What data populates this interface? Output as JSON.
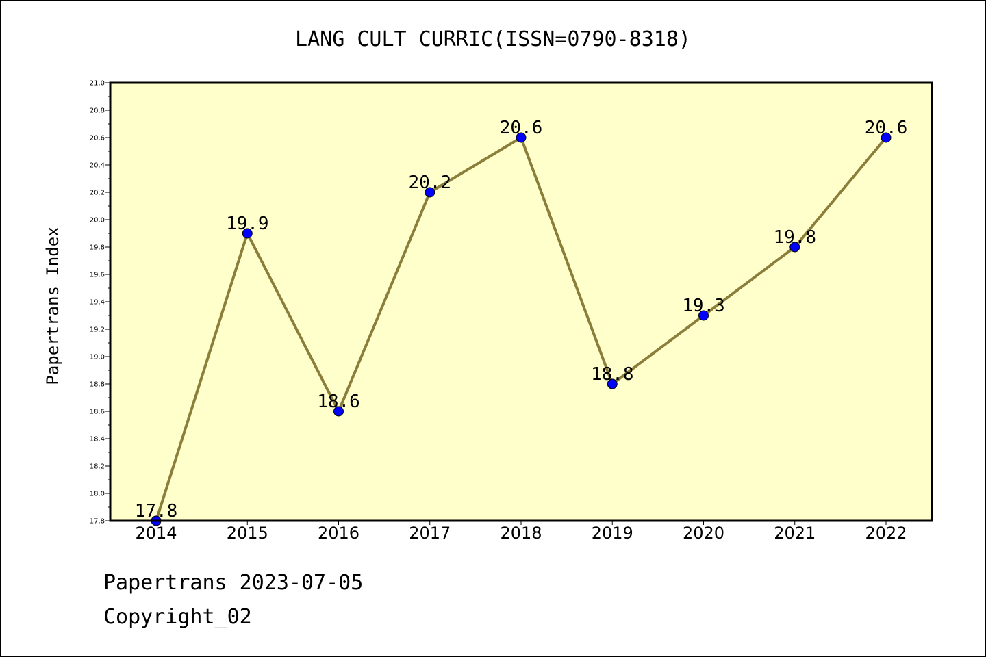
{
  "chart_data": {
    "type": "line",
    "title": "LANG CULT CURRIC(ISSN=0790-8318)",
    "xlabel": "",
    "ylabel": "Papertrans Index",
    "x": [
      "2014",
      "2015",
      "2016",
      "2017",
      "2018",
      "2019",
      "2020",
      "2021",
      "2022"
    ],
    "series": [
      {
        "values": [
          17.8,
          19.9,
          18.6,
          20.2,
          20.6,
          18.8,
          19.3,
          19.8,
          20.6
        ],
        "labels": [
          "17.8",
          "19.9",
          "18.6",
          "20.2",
          "20.6",
          "18.8",
          "19.3",
          "19.8",
          "20.6"
        ]
      }
    ],
    "ylim": [
      17.8,
      21.0
    ],
    "yticks": [
      "17.8",
      "18.0",
      "18.2",
      "18.4",
      "18.6",
      "18.8",
      "19.0",
      "19.2",
      "19.4",
      "19.6",
      "19.8",
      "20.0",
      "20.2",
      "20.4",
      "20.6",
      "20.8",
      "21.0"
    ],
    "grid": false,
    "legend": "none",
    "colors": {
      "plot_background": "#ffffcc",
      "line": "#8b7d3a",
      "marker": "#0000ff",
      "marker_edge": "#000000"
    }
  },
  "footer": {
    "line1": "Papertrans 2023-07-05",
    "line2": "Copyright_02"
  }
}
